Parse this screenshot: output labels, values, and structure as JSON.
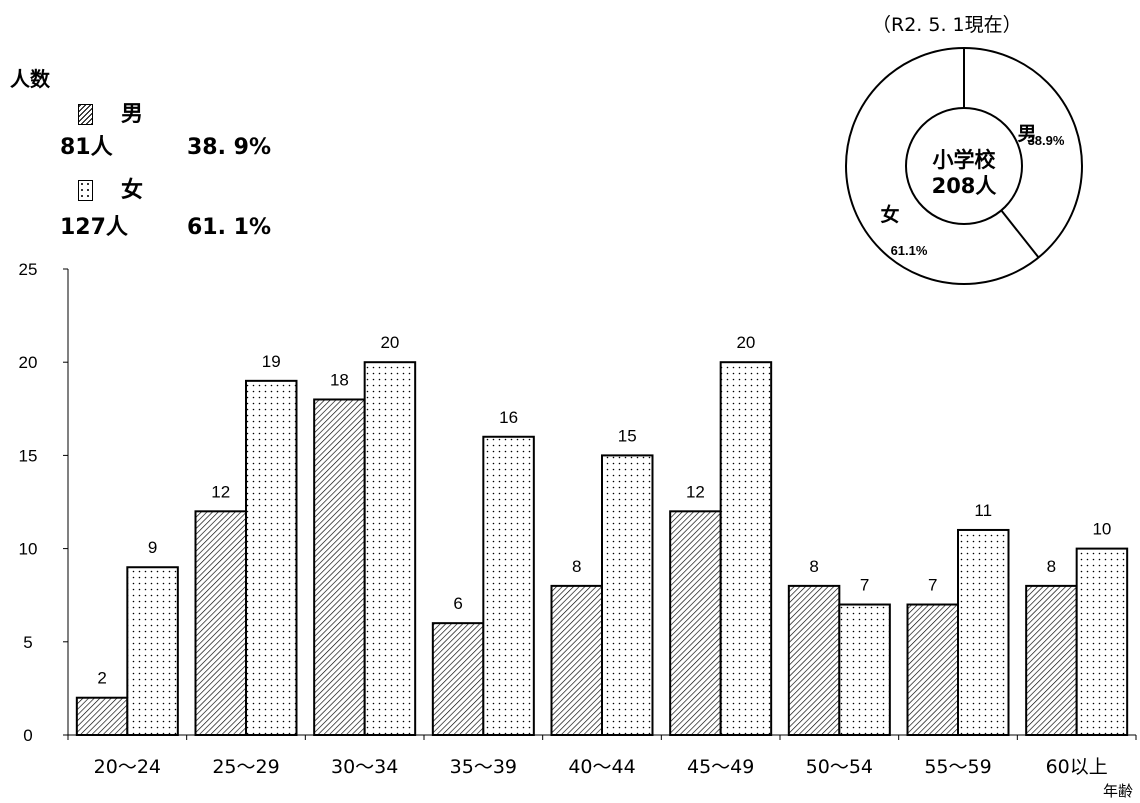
{
  "as_of": "（R2. 5. 1現在）",
  "y_unit": "人数",
  "x_unit": "年齢",
  "legend": {
    "male": {
      "label": "男",
      "count": "81人",
      "percent": "38. 9%"
    },
    "female": {
      "label": "女",
      "count": "127人",
      "percent": "61. 1%"
    }
  },
  "donut": {
    "center_line1": "小学校",
    "center_line2": "208人",
    "male_label": "男",
    "male_percent": "38.9%",
    "female_label": "女",
    "female_percent": "61.1%"
  },
  "chart_data": {
    "type": "bar",
    "categories": [
      "20～24",
      "25～29",
      "30～34",
      "35～39",
      "40～44",
      "45～49",
      "50～54",
      "55～59",
      "60以上"
    ],
    "series": [
      {
        "name": "男",
        "values": [
          2,
          12,
          18,
          6,
          8,
          12,
          8,
          7,
          8
        ],
        "pattern": "hatch"
      },
      {
        "name": "女",
        "values": [
          9,
          19,
          20,
          16,
          15,
          20,
          7,
          11,
          10
        ],
        "pattern": "dots"
      }
    ],
    "ylim": [
      0,
      25
    ],
    "yticks": [
      0,
      5,
      10,
      15,
      20,
      25
    ],
    "ylabel": "人数",
    "xlabel": "年齢",
    "grid": false,
    "data_labels": true
  }
}
